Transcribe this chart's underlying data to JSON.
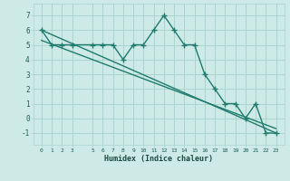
{
  "x": [
    0,
    1,
    2,
    3,
    5,
    6,
    7,
    8,
    9,
    10,
    11,
    12,
    13,
    14,
    15,
    16,
    17,
    18,
    19,
    20,
    21,
    22,
    23
  ],
  "humidex": [
    6,
    5,
    5,
    5,
    5,
    5,
    5,
    4,
    5,
    5,
    6,
    7,
    6,
    5,
    5,
    3,
    2,
    1,
    1,
    0,
    1,
    -1,
    -1
  ],
  "trend1_x": [
    0,
    23
  ],
  "trend1_y": [
    6.0,
    -1.0
  ],
  "trend2_x": [
    0,
    23
  ],
  "trend2_y": [
    5.3,
    -0.7
  ],
  "xlabel": "Humidex (Indice chaleur)",
  "ylim": [
    -1.8,
    7.8
  ],
  "xlim": [
    -0.8,
    23.8
  ],
  "yticks": [
    -1,
    0,
    1,
    2,
    3,
    4,
    5,
    6,
    7
  ],
  "xtick_positions": [
    0,
    1,
    2,
    3,
    5,
    6,
    7,
    8,
    9,
    10,
    11,
    12,
    13,
    14,
    15,
    16,
    17,
    18,
    19,
    20,
    21,
    22,
    23
  ],
  "xtick_labels": [
    "0",
    "1",
    "2",
    "3",
    "5",
    "6",
    "7",
    "8",
    "9",
    "10",
    "11",
    "12",
    "13",
    "14",
    "15",
    "16",
    "17",
    "18",
    "19",
    "20",
    "21",
    "22",
    "23"
  ],
  "line_color": "#1e7b6e",
  "bg_color": "#ceeae6",
  "grid_color": "#aad4ce",
  "tick_color": "#1a5c52",
  "label_color": "#1a4a44"
}
